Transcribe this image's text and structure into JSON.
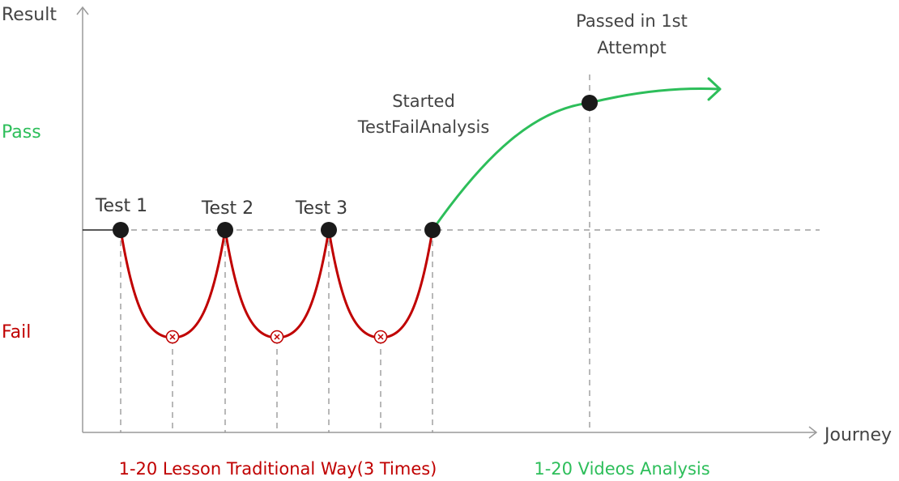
{
  "colors": {
    "pass": "#2dbe5a",
    "fail": "#c00000",
    "axis": "#9a9a9a",
    "guide": "#8a8a8a",
    "point": "#1a1a1a",
    "text": "#444444"
  },
  "axes": {
    "y_label": "Result",
    "x_label": "Journey"
  },
  "levels": {
    "pass_label": "Pass",
    "fail_label": "Fail"
  },
  "tests": [
    {
      "label": "Test 1"
    },
    {
      "label": "Test 2"
    },
    {
      "label": "Test 3"
    }
  ],
  "annotations": {
    "started_line1": "Started",
    "started_line2": "TestFailAnalysis",
    "passed_line1": "Passed in 1st",
    "passed_line2": "Attempt"
  },
  "captions": {
    "traditional": "1-20 Lesson Traditional Way(3 Times)",
    "videos": "1-20 Videos Analysis"
  },
  "icons": {
    "fail_marker": "circle-x-icon",
    "arrow": "arrow-right-icon"
  }
}
